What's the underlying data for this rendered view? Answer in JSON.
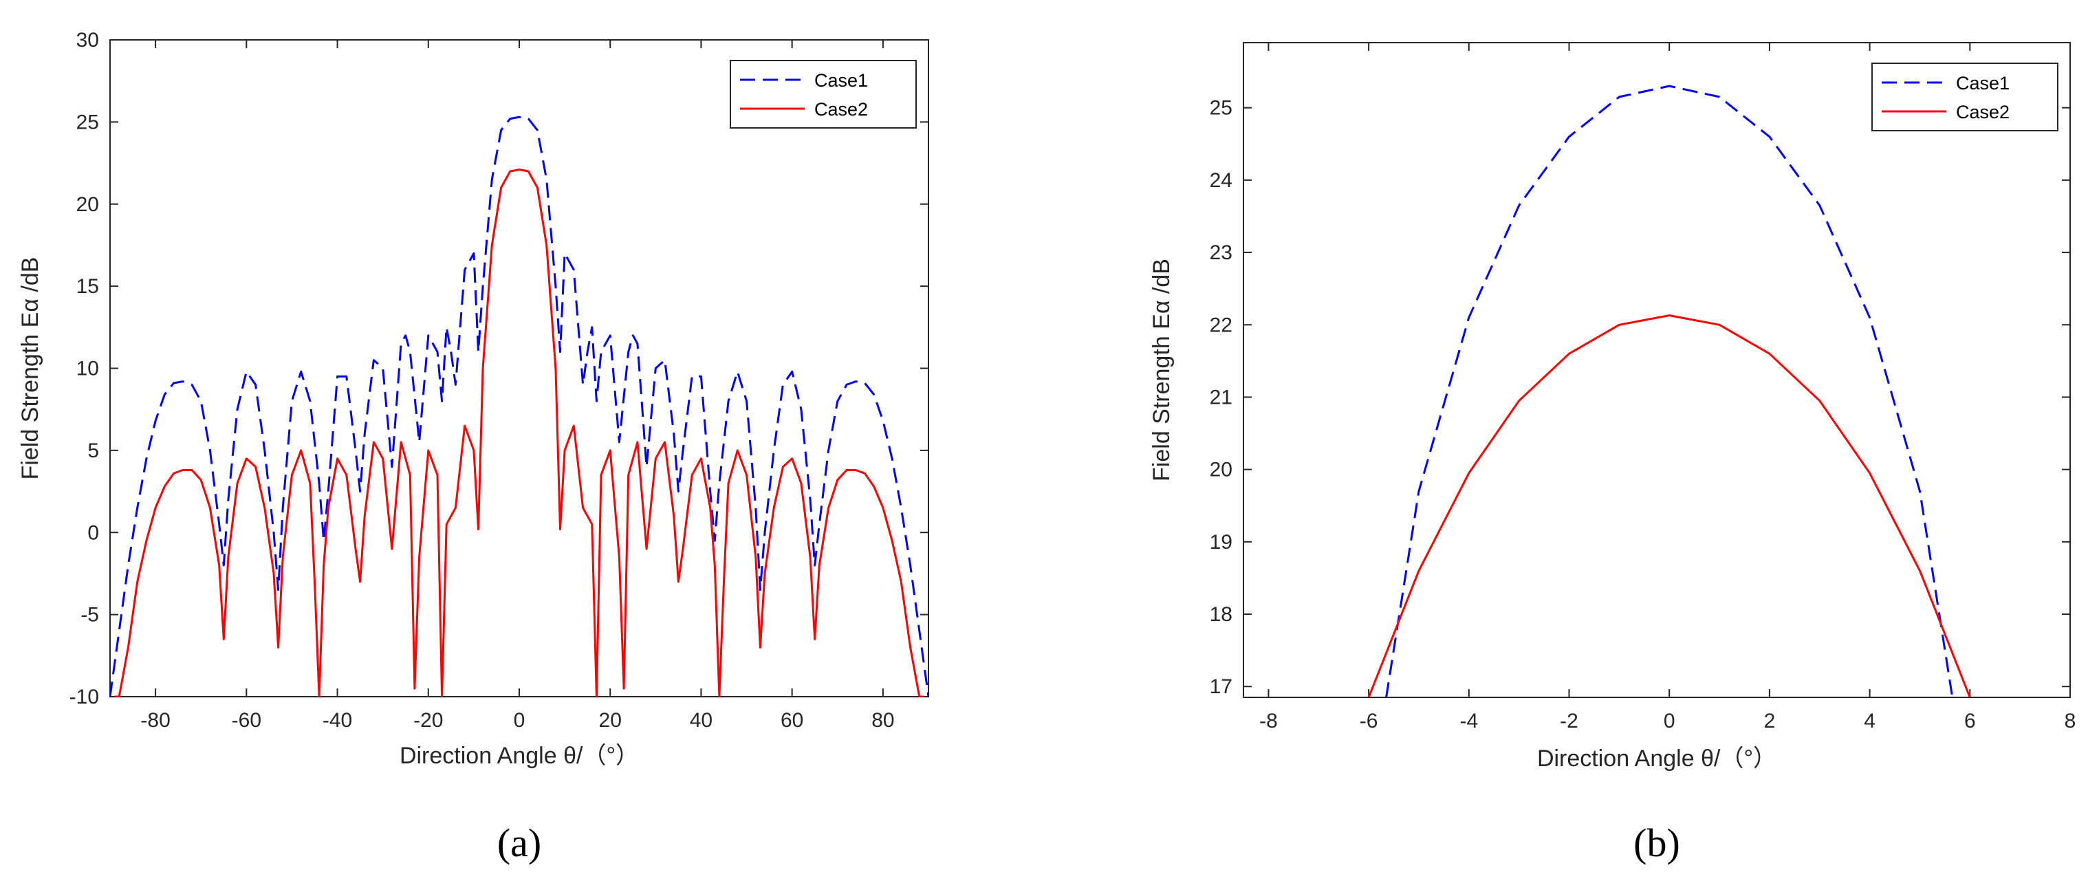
{
  "chart_data": [
    {
      "type": "line",
      "panel_label": "(a)",
      "xlabel": "Direction Angle θ/（°）",
      "ylabel": "Field Strength Eα /dB",
      "xlim": [
        -90,
        90
      ],
      "ylim": [
        -10,
        30
      ],
      "xticks": [
        -80,
        -60,
        -40,
        -20,
        0,
        20,
        40,
        60,
        80
      ],
      "yticks": [
        -10,
        -5,
        0,
        5,
        10,
        15,
        20,
        25,
        30
      ],
      "legend_position": "top-right",
      "series": [
        {
          "name": "Case1",
          "color": "#0000ff",
          "style": "dashed",
          "x": [
            -90,
            -88,
            -86,
            -84,
            -82,
            -80,
            -78,
            -76,
            -74,
            -72,
            -70,
            -68,
            -66,
            -65,
            -64,
            -62,
            -60,
            -58,
            -56,
            -54,
            -53,
            -52,
            -50,
            -48,
            -46,
            -44,
            -43,
            -42,
            -40,
            -38,
            -36,
            -35,
            -34,
            -32,
            -30,
            -28,
            -26,
            -25,
            -24,
            -22,
            -20,
            -18,
            -17,
            -16,
            -15,
            -14,
            -12,
            -10,
            -9,
            -8,
            -6,
            -4,
            -2,
            0,
            2,
            4,
            6,
            8,
            9,
            10,
            12,
            14,
            15,
            16,
            17,
            18,
            20,
            22,
            24,
            25,
            26,
            28,
            30,
            32,
            34,
            35,
            36,
            38,
            40,
            42,
            43,
            44,
            46,
            48,
            50,
            52,
            53,
            54,
            56,
            58,
            60,
            62,
            64,
            65,
            66,
            68,
            70,
            72,
            74,
            76,
            78,
            80,
            82,
            84,
            86,
            88,
            90
          ],
          "y": [
            -10,
            -6,
            -2,
            1.5,
            4.5,
            6.8,
            8.4,
            9.1,
            9.2,
            9,
            8,
            5,
            0.5,
            -2,
            2,
            7.5,
            9.8,
            9,
            5,
            0,
            -3.5,
            1.5,
            8,
            9.8,
            8,
            3,
            -0.5,
            2.5,
            9.5,
            9.5,
            5,
            2.5,
            6,
            10.5,
            10,
            4,
            11.5,
            12,
            11,
            5.5,
            12,
            11,
            8,
            12.5,
            11,
            9,
            16,
            17,
            11,
            15,
            21.5,
            24.5,
            25.2,
            25.3,
            25.2,
            24.5,
            21.5,
            15,
            11,
            17,
            16,
            9,
            11,
            12.5,
            8,
            11,
            12,
            5.5,
            11,
            12,
            11.5,
            4,
            10,
            10.5,
            6,
            2.5,
            5,
            9.5,
            9.5,
            2.5,
            -0.5,
            3,
            8,
            9.8,
            8,
            1.5,
            -3.5,
            0,
            5,
            9,
            9.8,
            7.5,
            2,
            -2,
            0.5,
            5,
            8,
            9,
            9.2,
            9.1,
            8.4,
            6.8,
            4.5,
            1.5,
            -2,
            -6,
            -10
          ]
        },
        {
          "name": "Case2",
          "color": "#ff0000",
          "style": "solid",
          "x": [
            -89,
            -88,
            -86,
            -84,
            -82,
            -80,
            -78,
            -76,
            -74,
            -72,
            -70,
            -68,
            -66,
            -65,
            -64,
            -62,
            -60,
            -58,
            -56,
            -54,
            -53,
            -52,
            -50,
            -48,
            -46,
            -45,
            -44,
            -43,
            -42,
            -40,
            -38,
            -36,
            -35,
            -34,
            -32,
            -30,
            -28,
            -26,
            -24,
            -23,
            -22,
            -20,
            -18,
            -17,
            -16,
            -14,
            -12,
            -10,
            -9,
            -8,
            -6,
            -4,
            -2,
            0,
            2,
            4,
            6,
            8,
            9,
            10,
            12,
            14,
            16,
            17,
            18,
            20,
            22,
            23,
            24,
            26,
            28,
            30,
            32,
            34,
            35,
            36,
            38,
            40,
            42,
            43,
            44,
            45,
            46,
            48,
            50,
            52,
            53,
            54,
            56,
            58,
            60,
            62,
            64,
            65,
            66,
            68,
            70,
            72,
            74,
            76,
            78,
            80,
            82,
            84,
            86,
            88,
            89
          ],
          "y": [
            -10,
            -10,
            -7,
            -3,
            -0.5,
            1.5,
            2.8,
            3.6,
            3.8,
            3.8,
            3.2,
            1.5,
            -2,
            -6.5,
            -1.5,
            3,
            4.5,
            4,
            1.5,
            -2.5,
            -7,
            -1.5,
            3.5,
            5,
            3,
            -3,
            -10,
            -2,
            1.5,
            4.5,
            3.5,
            -1,
            -3,
            1,
            5.5,
            4.5,
            -1,
            5.5,
            3.5,
            -9.5,
            -1.5,
            5,
            3.5,
            -10,
            0.5,
            1.5,
            6.5,
            5,
            0.2,
            10,
            17.5,
            21,
            22,
            22.1,
            22,
            21,
            17.5,
            10,
            0.2,
            5,
            6.5,
            1.5,
            0.5,
            -10,
            3.5,
            5,
            -1.5,
            -9.5,
            3.5,
            5.5,
            -1,
            4.5,
            5.5,
            1,
            -3,
            -1,
            3.5,
            4.5,
            1.5,
            -2,
            -10,
            -3,
            3,
            5,
            3.5,
            -1.5,
            -7,
            -2.5,
            1.5,
            4,
            4.5,
            3,
            -1.5,
            -6.5,
            -2,
            1.5,
            3.2,
            3.8,
            3.8,
            3.6,
            2.8,
            1.5,
            -0.5,
            -3,
            -7,
            -10,
            -10
          ]
        }
      ]
    },
    {
      "type": "line",
      "panel_label": "(b)",
      "xlabel": "Direction Angle θ/（°）",
      "ylabel": "Field Strength Eα /dB",
      "xlim": [
        -8.5,
        8
      ],
      "ylim": [
        16.85,
        25.9
      ],
      "xticks": [
        -8,
        -6,
        -4,
        -2,
        0,
        2,
        4,
        6,
        8
      ],
      "yticks": [
        17,
        18,
        19,
        20,
        21,
        22,
        23,
        24,
        25
      ],
      "legend_position": "top-right",
      "series": [
        {
          "name": "Case1",
          "color": "#0000ff",
          "style": "dashed",
          "x": [
            -5.65,
            -5,
            -4,
            -3,
            -2,
            -1,
            0,
            1,
            2,
            3,
            4,
            5,
            5.65
          ],
          "y": [
            16.85,
            19.7,
            22.1,
            23.65,
            24.6,
            25.15,
            25.3,
            25.15,
            24.6,
            23.65,
            22.1,
            19.7,
            16.85
          ]
        },
        {
          "name": "Case2",
          "color": "#ff0000",
          "style": "solid",
          "x": [
            -6,
            -5,
            -4,
            -3,
            -2,
            -1,
            0,
            1,
            2,
            3,
            4,
            5,
            6
          ],
          "y": [
            16.85,
            18.6,
            19.95,
            20.95,
            21.6,
            22,
            22.13,
            22,
            21.6,
            20.95,
            19.95,
            18.6,
            16.85
          ]
        }
      ]
    }
  ]
}
